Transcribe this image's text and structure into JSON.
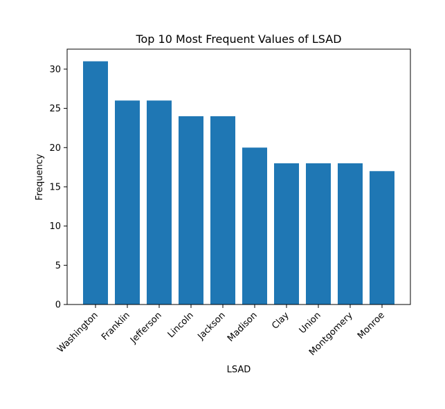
{
  "chart_data": {
    "type": "bar",
    "title": "Top 10 Most Frequent Values of LSAD",
    "xlabel": "LSAD",
    "ylabel": "Frequency",
    "categories": [
      "Washington",
      "Franklin",
      "Jefferson",
      "Lincoln",
      "Jackson",
      "Madison",
      "Clay",
      "Union",
      "Montgomery",
      "Monroe"
    ],
    "values": [
      31,
      26,
      26,
      24,
      24,
      20,
      18,
      18,
      18,
      17
    ],
    "ylim": [
      0,
      32.55
    ],
    "yticks": [
      0,
      5,
      10,
      15,
      20,
      25,
      30
    ],
    "grid": false,
    "bar_color": "#1f77b4"
  }
}
